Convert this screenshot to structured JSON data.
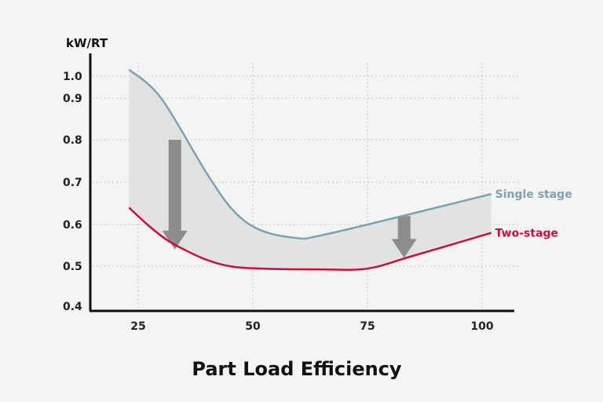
{
  "chart_data": {
    "type": "line",
    "title": "Part Load Efficiency",
    "ylabel": "kW/RT",
    "xlabel": "",
    "x_ticks": [
      25,
      50,
      75,
      100
    ],
    "y_ticks": [
      "0.4",
      "0.5",
      "0.6",
      "0.7",
      "0.8",
      "0.9",
      "1.0"
    ],
    "xlim": [
      15,
      108
    ],
    "ylim": [
      0.4,
      1.05
    ],
    "grid": true,
    "legend": "right, at line ends",
    "shaded_between_series": true,
    "series": [
      {
        "name": "Single stage",
        "color": "#7ba3b5",
        "x": [
          23,
          30,
          40,
          46,
          52,
          60,
          64,
          75,
          102
        ],
        "y": [
          1.03,
          0.9,
          0.72,
          0.63,
          0.585,
          0.567,
          0.572,
          0.6,
          0.672
        ]
      },
      {
        "name": "Two-stage",
        "color": "#c8103e",
        "x": [
          23,
          27,
          31,
          35,
          40,
          46,
          55,
          65,
          75,
          85,
          102
        ],
        "y": [
          0.64,
          0.6,
          0.565,
          0.54,
          0.515,
          0.498,
          0.493,
          0.492,
          0.494,
          0.525,
          0.58
        ]
      }
    ],
    "arrows": [
      {
        "x": 33,
        "from": 0.8,
        "to": 0.54,
        "color": "#8c8c8c"
      },
      {
        "x": 83,
        "from": 0.62,
        "to": 0.52,
        "color": "#8c8c8c"
      }
    ]
  }
}
